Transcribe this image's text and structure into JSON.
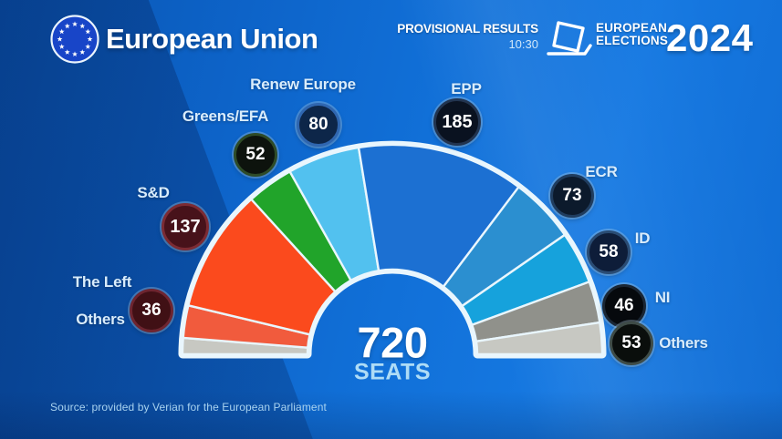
{
  "header": {
    "title": "European Union",
    "provisional_label": "PROVISIONAL RESULTS",
    "time": "10:30",
    "elections_line1": "EUROPEAN",
    "elections_line2": "ELECTIONS",
    "year": "2024"
  },
  "center": {
    "total": "720",
    "seats_label": "SEATS"
  },
  "source": {
    "text": "Source: provided by Verian for the European Parliament"
  },
  "colors": {
    "background_top": "#1679e2",
    "background_bottom": "#0a55b2",
    "hemicycle_outline": "#e9f6fd",
    "flag_blue": "#1845c8",
    "label_text": "#d9ecfb"
  },
  "chart_data": {
    "type": "pie",
    "layout": "hemicycle",
    "title": "European Parliament provisional results 2024 — seats by political group",
    "total_seats": 720,
    "legend_position": "callouts-around-arc",
    "segments": [
      {
        "group": "Others",
        "arc_seats": 18,
        "color": "#c7c8c2"
      },
      {
        "group": "The Left",
        "arc_seats": 36,
        "color": "#f15b3d"
      },
      {
        "group": "S&D",
        "arc_seats": 137,
        "color": "#fb4a1d"
      },
      {
        "group": "Greens/EFA",
        "arc_seats": 52,
        "color": "#21a42a"
      },
      {
        "group": "Renew Europe",
        "arc_seats": 80,
        "color": "#52c1ef"
      },
      {
        "group": "EPP",
        "arc_seats": 185,
        "color": "#1c70d2"
      },
      {
        "group": "ECR",
        "arc_seats": 73,
        "color": "#2b8fd0"
      },
      {
        "group": "ID",
        "arc_seats": 58,
        "color": "#16a2dc"
      },
      {
        "group": "NI",
        "arc_seats": 46,
        "color": "#90918b"
      },
      {
        "group": "Others",
        "arc_seats": 35,
        "color": "#c7c8c2"
      }
    ],
    "callouts": [
      {
        "id": "the-left",
        "label": "The Left",
        "seats": "36",
        "badge_fill": "#401015",
        "badge_ring": "#6e2530"
      },
      {
        "id": "others-left",
        "label": "Others",
        "seats": null,
        "badge_fill": null,
        "badge_ring": null
      },
      {
        "id": "sd",
        "label": "S&D",
        "seats": "137",
        "badge_fill": "#47121a",
        "badge_ring": "#7c2b33"
      },
      {
        "id": "greens-efa",
        "label": "Greens/EFA",
        "seats": "52",
        "badge_fill": "#0d130d",
        "badge_ring": "#2e4b27"
      },
      {
        "id": "renew",
        "label": "Renew Europe",
        "seats": "80",
        "badge_fill": "#0d2649",
        "badge_ring": "#2f66b0"
      },
      {
        "id": "epp",
        "label": "EPP",
        "seats": "185",
        "badge_fill": "#0a1220",
        "badge_ring": "#22344f"
      },
      {
        "id": "ecr",
        "label": "ECR",
        "seats": "73",
        "badge_fill": "#0c1a2c",
        "badge_ring": "#203d5f"
      },
      {
        "id": "id",
        "label": "ID",
        "seats": "58",
        "badge_fill": "#0e1d39",
        "badge_ring": "#2a4c74"
      },
      {
        "id": "ni",
        "label": "NI",
        "seats": "46",
        "badge_fill": "#06090d",
        "badge_ring": "#1b2735"
      },
      {
        "id": "others-right",
        "label": "Others",
        "seats": "53",
        "badge_fill": "#0a0e0c",
        "badge_ring": "#3e4b46"
      }
    ]
  }
}
